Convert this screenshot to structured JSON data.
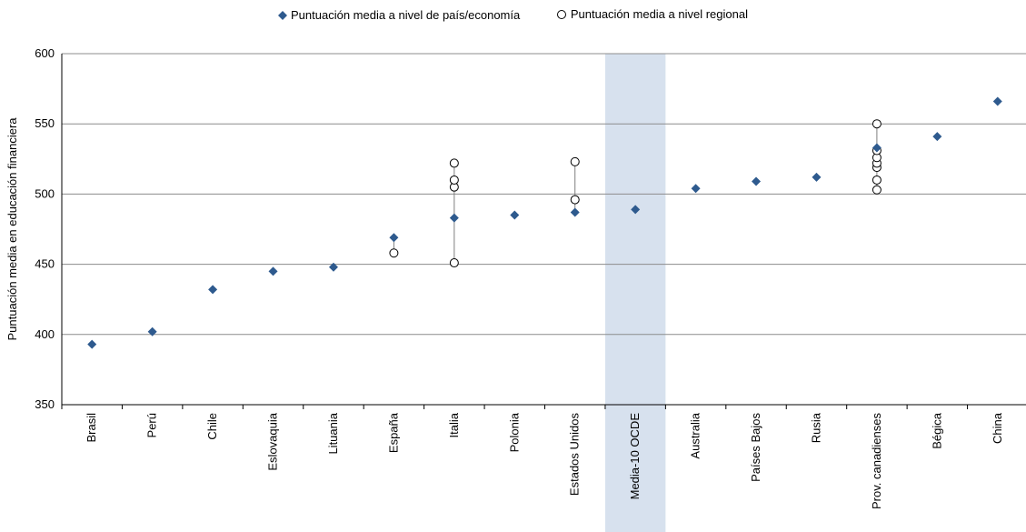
{
  "chart_data": {
    "type": "scatter",
    "title": "",
    "xlabel": "",
    "ylabel": "Puntuación media en educación financiera",
    "ylim": [
      350,
      600
    ],
    "yticks": [
      350,
      400,
      450,
      500,
      550,
      600
    ],
    "grid": true,
    "legend_position": "top-center",
    "highlight_category": "Media-10 OCDE",
    "categories": [
      "Brasil",
      "Perú",
      "Chile",
      "Eslovaquia",
      "Lituania",
      "España",
      "Italia",
      "Polonia",
      "Estados Unidos",
      "Media-10 OCDE",
      "Australia",
      "Países Bajos",
      "Rusia",
      "Prov. canadienses",
      "Bégica",
      "China"
    ],
    "series": [
      {
        "name": "Puntuación media a nivel de país/economía",
        "marker": "diamond",
        "color": "#2e5a8e",
        "values": [
          393,
          402,
          432,
          445,
          448,
          469,
          483,
          485,
          487,
          489,
          504,
          509,
          512,
          533,
          541,
          566
        ]
      },
      {
        "name": "Puntuación media a nivel regional",
        "marker": "open-circle",
        "color": "#000000",
        "values": [
          null,
          null,
          null,
          null,
          null,
          [
            458
          ],
          [
            451,
            505,
            510,
            522
          ],
          null,
          [
            496,
            523
          ],
          null,
          null,
          null,
          null,
          [
            503,
            510,
            519,
            522,
            526,
            531,
            550
          ],
          null,
          null
        ]
      }
    ]
  },
  "legend": {
    "items": [
      {
        "label": "Puntuación media a nivel de país/economía",
        "marker": "diamond"
      },
      {
        "label": "Puntuación media a nivel regional",
        "marker": "open-circle"
      }
    ]
  },
  "colors": {
    "highlight_band": "#d7e1ee",
    "grid": "#8c8c8c",
    "axis": "#000000"
  }
}
